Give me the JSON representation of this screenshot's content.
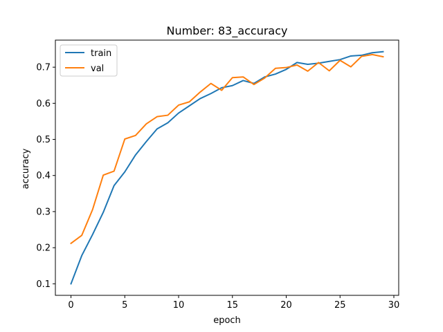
{
  "chart_data": {
    "type": "line",
    "title": "Number: 83_accuracy",
    "xlabel": "epoch",
    "ylabel": "accuracy",
    "xlim": [
      -1.45,
      30.45
    ],
    "ylim": [
      0.068,
      0.775
    ],
    "xticks": [
      0,
      5,
      10,
      15,
      20,
      25,
      30
    ],
    "yticks": [
      0.1,
      0.2,
      0.3,
      0.4,
      0.5,
      0.6,
      0.7
    ],
    "grid": false,
    "legend": "upper left",
    "x": [
      0,
      1,
      2,
      3,
      4,
      5,
      6,
      7,
      8,
      9,
      10,
      11,
      12,
      13,
      14,
      15,
      16,
      17,
      18,
      19,
      20,
      21,
      22,
      23,
      24,
      25,
      26,
      27,
      28,
      29
    ],
    "series": [
      {
        "name": "train",
        "color": "#1f77b4",
        "values": [
          0.1,
          0.178,
          0.236,
          0.298,
          0.372,
          0.41,
          0.457,
          0.494,
          0.529,
          0.546,
          0.573,
          0.593,
          0.613,
          0.627,
          0.643,
          0.649,
          0.663,
          0.655,
          0.673,
          0.681,
          0.694,
          0.713,
          0.708,
          0.711,
          0.716,
          0.721,
          0.731,
          0.733,
          0.74,
          0.743
        ]
      },
      {
        "name": "val",
        "color": "#ff7f0e",
        "values": [
          0.212,
          0.234,
          0.305,
          0.401,
          0.412,
          0.501,
          0.511,
          0.543,
          0.563,
          0.567,
          0.595,
          0.604,
          0.631,
          0.655,
          0.636,
          0.671,
          0.673,
          0.652,
          0.67,
          0.697,
          0.699,
          0.706,
          0.689,
          0.713,
          0.69,
          0.719,
          0.701,
          0.73,
          0.735,
          0.729
        ]
      }
    ]
  }
}
